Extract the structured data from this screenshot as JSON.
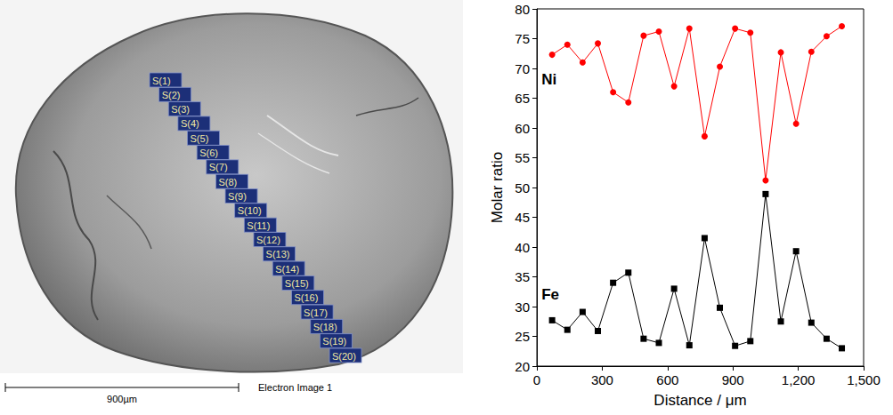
{
  "chart_data": {
    "type": "line",
    "x": [
      70,
      140,
      210,
      280,
      350,
      420,
      490,
      560,
      630,
      700,
      770,
      840,
      910,
      980,
      1050,
      1120,
      1190,
      1260,
      1330,
      1400
    ],
    "series": [
      {
        "name": "Ni",
        "color": "#ff0000",
        "marker": "circle",
        "values": [
          72.3,
          74.0,
          71.0,
          74.2,
          66.0,
          64.3,
          75.5,
          76.2,
          67.0,
          76.7,
          58.6,
          70.3,
          76.7,
          76.0,
          51.2,
          72.7,
          60.7,
          72.8,
          75.4,
          77.1
        ]
      },
      {
        "name": "Fe",
        "color": "#000000",
        "marker": "square",
        "values": [
          27.7,
          26.1,
          29.1,
          25.9,
          34.0,
          35.7,
          24.6,
          23.9,
          33.0,
          23.5,
          41.5,
          29.8,
          23.4,
          24.2,
          48.9,
          27.5,
          39.3,
          27.3,
          24.6,
          23.0
        ]
      }
    ],
    "xlabel": "Distance / μm",
    "ylabel": "Molar ratio",
    "xlim": [
      0,
      1500
    ],
    "xticks": [
      0,
      300,
      600,
      900,
      1200,
      1500
    ],
    "ylim": [
      20,
      80
    ],
    "yticks": [
      20,
      25,
      30,
      35,
      40,
      45,
      50,
      55,
      60,
      65,
      70,
      75,
      80
    ],
    "grid": false,
    "line_style": "solid"
  },
  "image": {
    "points": [
      "S(1)",
      "S(2)",
      "S(3)",
      "S(4)",
      "S(5)",
      "S(6)",
      "S(7)",
      "S(8)",
      "S(9)",
      "S(10)",
      "S(11)",
      "S(12)",
      "S(13)",
      "S(14)",
      "S(15)",
      "S(16)",
      "S(17)",
      "S(18)",
      "S(19)",
      "S(20)"
    ],
    "scale_bar": "900µm",
    "caption": "Electron Image 1"
  }
}
